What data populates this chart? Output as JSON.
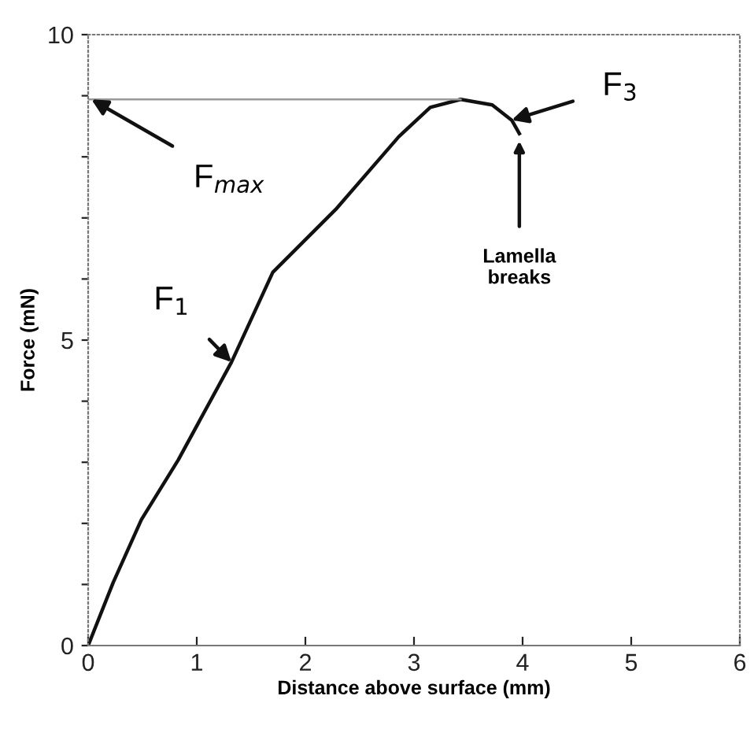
{
  "chart_data": {
    "type": "line",
    "xlabel": "Distance above surface (mm)",
    "ylabel": "Force (mN)",
    "xlim": [
      0,
      6
    ],
    "ylim": [
      0,
      10
    ],
    "xticks": [
      0,
      1,
      2,
      3,
      4,
      5,
      6
    ],
    "yticks": [
      0,
      {
        "value": 1,
        "label": null
      },
      {
        "value": 2,
        "label": null
      },
      {
        "value": 3,
        "label": null
      },
      {
        "value": 4,
        "label": null
      },
      5,
      {
        "value": 6,
        "label": null
      },
      {
        "value": 7,
        "label": null
      },
      {
        "value": 8,
        "label": null
      },
      {
        "value": 9,
        "label": null
      },
      10
    ],
    "grid": false,
    "legend": false,
    "marker": "none",
    "line_style": "solid",
    "series": [
      {
        "color": "#111111",
        "x": [
          0,
          0.23,
          0.49,
          0.83,
          1.32,
          1.7,
          2.28,
          2.86,
          3.15,
          3.43,
          3.72,
          3.9,
          3.97
        ],
        "values": [
          0,
          1.03,
          2.06,
          3.04,
          4.64,
          6.11,
          7.14,
          8.33,
          8.81,
          8.94,
          8.85,
          8.6,
          8.38
        ]
      },
      {
        "color": "#999999",
        "x": [
          0,
          3.43
        ],
        "values": [
          8.94,
          8.94
        ]
      }
    ],
    "annotations": [
      {
        "text": "F$_{max}$",
        "x": 0,
        "y": 8.94
      },
      {
        "text": "F$_{1}$",
        "x": 1.32,
        "y": 4.64
      },
      {
        "text": "F$_{3}$",
        "x": 3.9,
        "y": 8.6
      },
      {
        "text": "Lamella\nbreaks",
        "x": 3.97,
        "y": 8.38
      }
    ]
  }
}
